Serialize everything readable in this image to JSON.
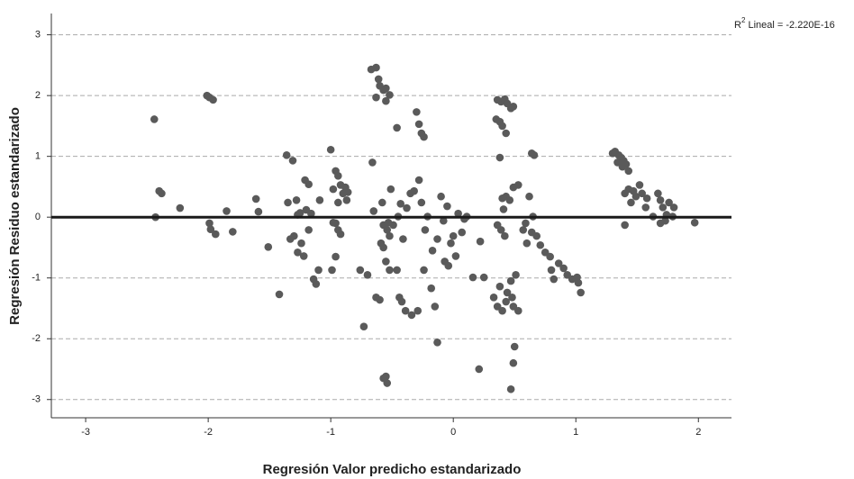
{
  "chart_data": {
    "type": "scatter",
    "xlabel": "Regresión Valor predicho estandarizado",
    "ylabel": "Regresión Residuo estandarizado",
    "annotation": {
      "base": "R",
      "superscript": "2",
      "text": " Lineal = -2.220E-16"
    },
    "fit_line": {
      "intercept": 0,
      "slope": 0,
      "color": "#1a1a1a"
    },
    "color": "#5a5a5a",
    "grid": true,
    "xlim": [
      -3.28,
      2.27
    ],
    "xticks": [
      -3,
      -2,
      -1,
      0,
      1,
      2
    ],
    "ylim": [
      -3.3,
      3.35
    ],
    "yticks": [
      -3,
      -2,
      -1,
      0,
      1,
      2,
      3
    ],
    "x": [
      -2.44,
      -2.43,
      -2.4,
      -2.38,
      -2.23,
      -2.01,
      -1.99,
      -1.96,
      -1.99,
      -1.98,
      -1.94,
      -1.85,
      -1.8,
      -1.61,
      -1.59,
      -1.51,
      -1.42,
      -1.36,
      -1.31,
      -1.35,
      -1.33,
      -1.3,
      -1.27,
      -1.25,
      -1.24,
      -1.21,
      -1.2,
      -1.18,
      -1.22,
      -1.16,
      -1.28,
      -1.14,
      -1.12,
      -1.1,
      -1.18,
      -1.27,
      -1.0,
      -0.98,
      -0.96,
      -0.94,
      -0.92,
      -0.9,
      -0.88,
      -0.86,
      -0.96,
      -0.94,
      -0.92,
      -0.96,
      -0.99,
      -0.98,
      -0.87,
      -0.94,
      -1.09,
      -0.76,
      -0.73,
      -0.7,
      -0.66,
      -0.65,
      -0.67,
      -0.63,
      -0.61,
      -0.6,
      -0.57,
      -0.55,
      -0.63,
      -0.55,
      -0.52,
      -0.63,
      -0.6,
      -0.58,
      -0.57,
      -0.54,
      -0.52,
      -0.57,
      -0.55,
      -0.52,
      -0.57,
      -0.54,
      -0.55,
      -0.51,
      -0.59,
      -0.53,
      -0.49,
      -0.46,
      -0.45,
      -0.43,
      -0.41,
      -0.46,
      -0.44,
      -0.42,
      -0.39,
      -0.38,
      -0.35,
      -0.34,
      -0.32,
      -0.3,
      -0.29,
      -0.28,
      -0.26,
      -0.24,
      -0.28,
      -0.26,
      -0.24,
      -0.23,
      -0.21,
      -0.18,
      -0.17,
      -0.15,
      -0.13,
      -0.13,
      -0.1,
      -0.08,
      -0.07,
      -0.05,
      -0.04,
      -0.02,
      0.0,
      0.02,
      0.04,
      0.07,
      0.09,
      0.11,
      0.16,
      0.21,
      0.22,
      0.25,
      0.36,
      0.39,
      0.42,
      0.44,
      0.47,
      0.49,
      0.35,
      0.38,
      0.4,
      0.43,
      0.38,
      0.4,
      0.41,
      0.43,
      0.46,
      0.49,
      0.53,
      0.36,
      0.39,
      0.42,
      0.33,
      0.36,
      0.38,
      0.4,
      0.43,
      0.44,
      0.47,
      0.48,
      0.49,
      0.51,
      0.5,
      0.49,
      0.47,
      0.53,
      0.57,
      0.59,
      0.6,
      0.62,
      0.64,
      0.66,
      0.65,
      0.68,
      0.71,
      0.75,
      0.79,
      0.8,
      0.82,
      0.86,
      0.9,
      0.93,
      0.97,
      1.01,
      1.04,
      1.02,
      0.64,
      1.3,
      1.32,
      1.35,
      1.37,
      1.39,
      1.41,
      1.43,
      1.34,
      1.38,
      1.4,
      1.43,
      1.45,
      1.4,
      1.47,
      1.49,
      1.52,
      1.54,
      1.57,
      1.58,
      1.63,
      1.67,
      1.69,
      1.71,
      1.73,
      1.74,
      1.76,
      1.79,
      1.8,
      1.69,
      1.97
    ],
    "values": [
      1.61,
      0,
      0.43,
      0.39,
      0.15,
      2.0,
      1.97,
      1.93,
      -0.1,
      -0.2,
      -0.28,
      0.1,
      -0.24,
      0.3,
      0.09,
      -0.49,
      -1.27,
      1.02,
      0.93,
      0.24,
      -0.36,
      -0.31,
      0.04,
      0.07,
      -0.43,
      0.61,
      0.12,
      -0.21,
      -0.64,
      0.06,
      0.28,
      -1.02,
      -1.1,
      -0.87,
      0.54,
      -0.58,
      1.11,
      0.46,
      0.76,
      0.68,
      0.53,
      0.39,
      0.49,
      0.41,
      -0.1,
      -0.21,
      -0.28,
      -0.65,
      -0.87,
      -0.09,
      0.28,
      0.24,
      0.28,
      -0.87,
      -1.8,
      -0.95,
      0.9,
      0.1,
      2.43,
      2.46,
      2.27,
      2.16,
      2.09,
      2.12,
      1.97,
      1.91,
      2.01,
      -1.32,
      -1.36,
      0.24,
      -0.13,
      -0.21,
      -0.31,
      -0.5,
      -0.73,
      -0.87,
      -2.65,
      -2.73,
      -2.62,
      0.46,
      -0.43,
      -0.09,
      -0.13,
      1.47,
      0.01,
      0.22,
      -0.36,
      -0.87,
      -1.32,
      -1.39,
      -1.54,
      0.15,
      0.39,
      -1.61,
      0.43,
      1.73,
      -1.54,
      1.53,
      1.38,
      1.32,
      0.61,
      0.24,
      -0.87,
      -0.21,
      0.01,
      -1.17,
      -0.55,
      -1.47,
      -2.06,
      -0.36,
      0.34,
      -0.06,
      -0.73,
      0.18,
      -0.8,
      -0.43,
      -0.31,
      -0.64,
      0.06,
      -0.25,
      -0.03,
      0.01,
      -0.99,
      -2.5,
      -0.4,
      -0.99,
      1.93,
      1.9,
      1.94,
      1.87,
      1.79,
      1.82,
      1.61,
      1.57,
      1.5,
      1.38,
      0.98,
      0.31,
      0.13,
      0.34,
      0.28,
      0.49,
      0.53,
      -0.13,
      -0.21,
      -0.31,
      -1.32,
      -1.47,
      -1.14,
      -1.54,
      -1.39,
      -1.24,
      -1.05,
      -1.32,
      -1.47,
      -0.95,
      -2.13,
      -2.4,
      -2.83,
      -1.54,
      -0.21,
      -0.1,
      -0.43,
      0.34,
      1.05,
      1.02,
      0.01,
      -0.31,
      -0.46,
      -0.58,
      -0.65,
      -0.87,
      -1.02,
      -0.76,
      -0.84,
      -0.95,
      -1.02,
      -0.99,
      -1.24,
      -1.08,
      -0.25,
      1.05,
      1.08,
      1.02,
      0.98,
      0.93,
      0.87,
      0.76,
      0.9,
      0.83,
      0.39,
      0.46,
      0.24,
      -0.13,
      0.43,
      0.34,
      0.53,
      0.39,
      0.16,
      0.31,
      0.01,
      0.39,
      0.28,
      0.16,
      -0.06,
      0.04,
      0.24,
      0.01,
      0.16,
      -0.1,
      -0.09
    ]
  }
}
